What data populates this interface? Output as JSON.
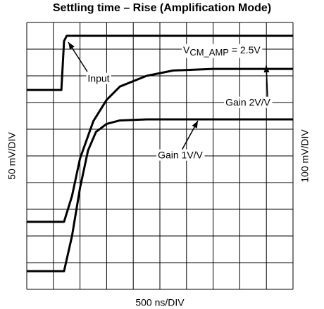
{
  "chart_data": {
    "type": "line",
    "title": "Settling time – Rise (Amplification Mode)",
    "xlabel": "500 ns/DIV",
    "ylabel": "50 mV/DIV",
    "y2label": "100 mV/DIV",
    "annotation": {
      "text": "V",
      "sub": "CM_AMP",
      "rest": " = 2.5V"
    },
    "xlim": [
      0,
      10
    ],
    "ylim": [
      0,
      10
    ],
    "xticks": [
      0,
      1,
      2,
      3,
      4,
      5,
      6,
      7,
      8,
      9,
      10
    ],
    "yticks": [
      0,
      1,
      2,
      3,
      4,
      5,
      6,
      7,
      8,
      9,
      10
    ],
    "grid": true,
    "series": [
      {
        "name": "Input",
        "color": "#000000",
        "x": [
          0,
          1.3,
          1.4,
          1.5,
          10
        ],
        "values": [
          7.47,
          7.47,
          9.3,
          9.5,
          9.5
        ]
      },
      {
        "name": "Gain 2V/V",
        "color": "#000000",
        "x": [
          0,
          1.4,
          1.7,
          2.0,
          2.5,
          3.0,
          3.5,
          4.5,
          5.5,
          7,
          10
        ],
        "values": [
          2.53,
          2.53,
          3.5,
          4.9,
          6.3,
          7.1,
          7.6,
          8.0,
          8.2,
          8.26,
          8.26
        ]
      },
      {
        "name": "Gain 1V/V",
        "color": "#000000",
        "x": [
          0,
          1.4,
          1.7,
          2.0,
          2.3,
          2.6,
          3.0,
          3.5,
          4.5,
          10
        ],
        "values": [
          0.68,
          0.68,
          2.0,
          3.8,
          5.2,
          5.9,
          6.2,
          6.33,
          6.37,
          6.37
        ]
      }
    ]
  }
}
